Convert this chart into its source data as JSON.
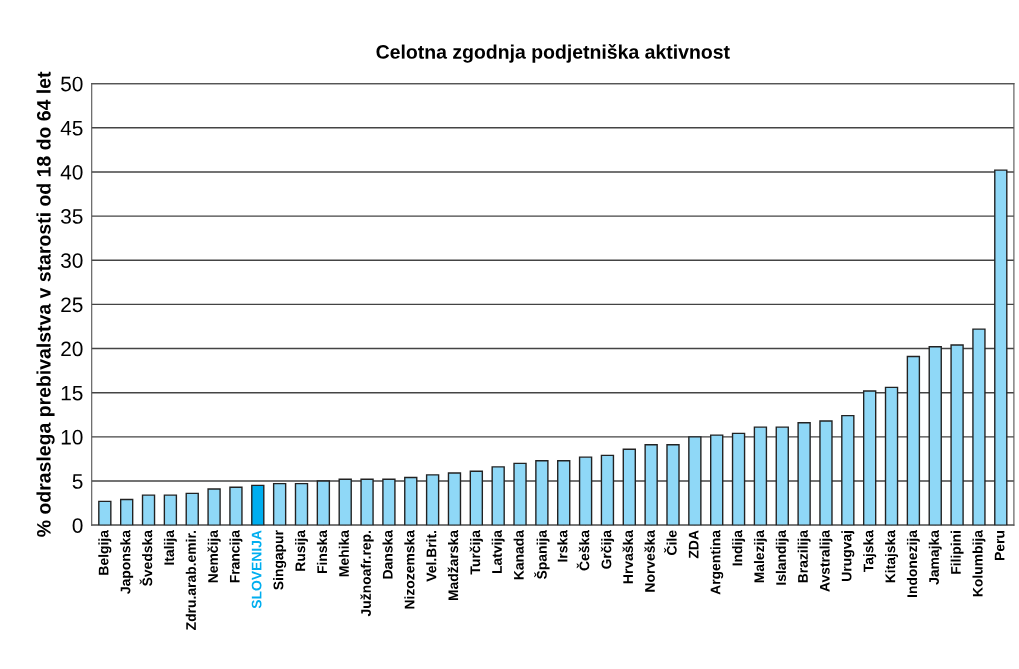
{
  "chart_data": {
    "type": "bar",
    "title": "Celotna zgodnja podjetniška aktivnost",
    "ylabel": "% odraslega prebivalstva v starosti od 18 do 64 let",
    "categories": [
      "Belgija",
      "Japonska",
      "Švedska",
      "Italija",
      "Zdru.arab.emir.",
      "Nemčija",
      "Francija",
      "SLOVENIJA",
      "Singapur",
      "Rusija",
      "Finska",
      "Mehika",
      "Južnoafr.rep.",
      "Danska",
      "Nizozemska",
      "Vel.Brit.",
      "Madžarska",
      "Turčija",
      "Latvija",
      "Kanada",
      "Španija",
      "Irska",
      "Češka",
      "Grčija",
      "Hrvaška",
      "Norveška",
      "Čile",
      "ZDA",
      "Argentina",
      "Indija",
      "Malezija",
      "Islandija",
      "Brazilija",
      "Avstralija",
      "Urugvaj",
      "Tajska",
      "Kitajska",
      "Indonezija",
      "Jamajka",
      "Filipini",
      "Kolumbija",
      "Peru"
    ],
    "values": [
      2.7,
      2.9,
      3.4,
      3.4,
      3.6,
      4.1,
      4.3,
      4.5,
      4.7,
      4.7,
      5.0,
      5.2,
      5.2,
      5.2,
      5.4,
      5.7,
      5.9,
      6.1,
      6.6,
      7.0,
      7.3,
      7.3,
      7.7,
      7.9,
      8.6,
      9.1,
      9.1,
      10.0,
      10.2,
      10.4,
      11.1,
      11.1,
      11.6,
      11.8,
      12.4,
      15.2,
      15.6,
      19.1,
      20.2,
      20.4,
      22.2,
      40.2
    ],
    "colors": [
      "#8fd8f7",
      "#8fd8f7",
      "#8fd8f7",
      "#8fd8f7",
      "#8fd8f7",
      "#8fd8f7",
      "#8fd8f7",
      "#00aeef",
      "#8fd8f7",
      "#8fd8f7",
      "#8fd8f7",
      "#8fd8f7",
      "#8fd8f7",
      "#8fd8f7",
      "#8fd8f7",
      "#8fd8f7",
      "#8fd8f7",
      "#8fd8f7",
      "#8fd8f7",
      "#8fd8f7",
      "#8fd8f7",
      "#8fd8f7",
      "#8fd8f7",
      "#8fd8f7",
      "#8fd8f7",
      "#8fd8f7",
      "#8fd8f7",
      "#8fd8f7",
      "#8fd8f7",
      "#8fd8f7",
      "#8fd8f7",
      "#8fd8f7",
      "#8fd8f7",
      "#8fd8f7",
      "#8fd8f7",
      "#8fd8f7",
      "#8fd8f7",
      "#8fd8f7",
      "#8fd8f7",
      "#8fd8f7",
      "#8fd8f7",
      "#8fd8f7"
    ],
    "ylim": [
      0,
      50
    ],
    "yticks": [
      0,
      5,
      10,
      15,
      20,
      25,
      30,
      35,
      40,
      45,
      50
    ],
    "grid": "y",
    "legend": false
  }
}
